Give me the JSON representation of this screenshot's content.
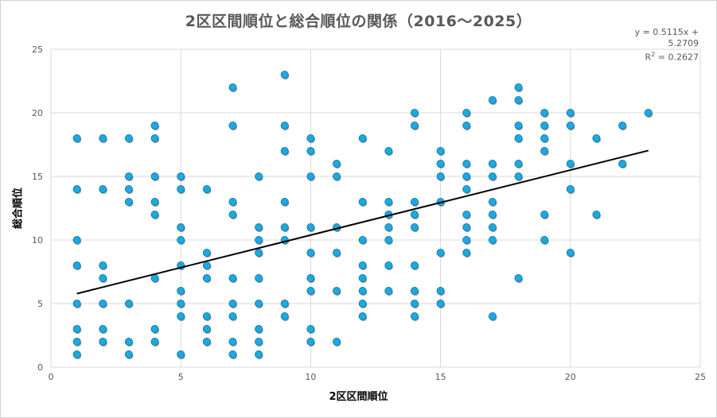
{
  "chart_data": {
    "type": "scatter",
    "title": "2区区間順位と総合順位の関係（2016～2025）",
    "xlabel": "2区区間順位",
    "ylabel": "総合順位",
    "xlim": [
      0,
      25
    ],
    "ylim": [
      0,
      25
    ],
    "xticks": [
      0,
      5,
      10,
      15,
      20,
      25
    ],
    "yticks": [
      0,
      5,
      10,
      15,
      20,
      25
    ],
    "grid": true,
    "marker_color": "#1CA9E1",
    "trendline": {
      "type": "linear",
      "slope": 0.5115,
      "intercept": 5.2709,
      "x_range": [
        1,
        23
      ],
      "equation_line1": "y = 0.5115x + 5.2709",
      "r2_prefix": "R",
      "r2_exp": "2",
      "r2_suffix": " = 0.2627"
    },
    "points": [
      [
        1,
        18
      ],
      [
        1,
        14
      ],
      [
        1,
        10
      ],
      [
        1,
        8
      ],
      [
        1,
        5
      ],
      [
        1,
        3
      ],
      [
        1,
        2
      ],
      [
        1,
        1
      ],
      [
        2,
        18
      ],
      [
        2,
        14
      ],
      [
        2,
        8
      ],
      [
        2,
        7
      ],
      [
        2,
        5
      ],
      [
        2,
        3
      ],
      [
        2,
        2
      ],
      [
        3,
        18
      ],
      [
        3,
        15
      ],
      [
        3,
        14
      ],
      [
        3,
        13
      ],
      [
        3,
        5
      ],
      [
        3,
        2
      ],
      [
        3,
        1
      ],
      [
        4,
        19
      ],
      [
        4,
        18
      ],
      [
        4,
        15
      ],
      [
        4,
        13
      ],
      [
        4,
        12
      ],
      [
        4,
        7
      ],
      [
        4,
        3
      ],
      [
        4,
        2
      ],
      [
        5,
        15
      ],
      [
        5,
        14
      ],
      [
        5,
        11
      ],
      [
        5,
        10
      ],
      [
        5,
        8
      ],
      [
        5,
        6
      ],
      [
        5,
        5
      ],
      [
        5,
        4
      ],
      [
        5,
        1
      ],
      [
        6,
        14
      ],
      [
        6,
        9
      ],
      [
        6,
        8
      ],
      [
        6,
        7
      ],
      [
        6,
        4
      ],
      [
        6,
        3
      ],
      [
        6,
        2
      ],
      [
        7,
        22
      ],
      [
        7,
        19
      ],
      [
        7,
        13
      ],
      [
        7,
        12
      ],
      [
        7,
        7
      ],
      [
        7,
        5
      ],
      [
        7,
        4
      ],
      [
        7,
        2
      ],
      [
        7,
        1
      ],
      [
        8,
        15
      ],
      [
        8,
        11
      ],
      [
        8,
        10
      ],
      [
        8,
        9
      ],
      [
        8,
        7
      ],
      [
        8,
        5
      ],
      [
        8,
        3
      ],
      [
        8,
        2
      ],
      [
        8,
        1
      ],
      [
        9,
        23
      ],
      [
        9,
        19
      ],
      [
        9,
        17
      ],
      [
        9,
        13
      ],
      [
        9,
        11
      ],
      [
        9,
        10
      ],
      [
        9,
        5
      ],
      [
        9,
        4
      ],
      [
        10,
        18
      ],
      [
        10,
        17
      ],
      [
        10,
        15
      ],
      [
        10,
        11
      ],
      [
        10,
        9
      ],
      [
        10,
        7
      ],
      [
        10,
        6
      ],
      [
        10,
        3
      ],
      [
        10,
        2
      ],
      [
        11,
        16
      ],
      [
        11,
        15
      ],
      [
        11,
        11
      ],
      [
        11,
        9
      ],
      [
        11,
        6
      ],
      [
        11,
        2
      ],
      [
        12,
        18
      ],
      [
        12,
        13
      ],
      [
        12,
        10
      ],
      [
        12,
        8
      ],
      [
        12,
        7
      ],
      [
        12,
        6
      ],
      [
        12,
        5
      ],
      [
        12,
        4
      ],
      [
        13,
        17
      ],
      [
        13,
        13
      ],
      [
        13,
        12
      ],
      [
        13,
        11
      ],
      [
        13,
        10
      ],
      [
        13,
        8
      ],
      [
        13,
        6
      ],
      [
        14,
        20
      ],
      [
        14,
        19
      ],
      [
        14,
        13
      ],
      [
        14,
        12
      ],
      [
        14,
        11
      ],
      [
        14,
        8
      ],
      [
        14,
        6
      ],
      [
        14,
        5
      ],
      [
        14,
        4
      ],
      [
        15,
        17
      ],
      [
        15,
        16
      ],
      [
        15,
        15
      ],
      [
        15,
        13
      ],
      [
        15,
        9
      ],
      [
        15,
        6
      ],
      [
        15,
        5
      ],
      [
        16,
        20
      ],
      [
        16,
        19
      ],
      [
        16,
        16
      ],
      [
        16,
        15
      ],
      [
        16,
        14
      ],
      [
        16,
        12
      ],
      [
        16,
        11
      ],
      [
        16,
        10
      ],
      [
        16,
        9
      ],
      [
        17,
        21
      ],
      [
        17,
        16
      ],
      [
        17,
        15
      ],
      [
        17,
        13
      ],
      [
        17,
        12
      ],
      [
        17,
        11
      ],
      [
        17,
        10
      ],
      [
        17,
        4
      ],
      [
        18,
        22
      ],
      [
        18,
        21
      ],
      [
        18,
        19
      ],
      [
        18,
        18
      ],
      [
        18,
        16
      ],
      [
        18,
        15
      ],
      [
        18,
        7
      ],
      [
        19,
        20
      ],
      [
        19,
        19
      ],
      [
        19,
        18
      ],
      [
        19,
        17
      ],
      [
        19,
        12
      ],
      [
        19,
        10
      ],
      [
        20,
        20
      ],
      [
        20,
        19
      ],
      [
        20,
        16
      ],
      [
        20,
        14
      ],
      [
        20,
        9
      ],
      [
        21,
        18
      ],
      [
        21,
        12
      ],
      [
        22,
        19
      ],
      [
        22,
        16
      ],
      [
        23,
        20
      ]
    ]
  }
}
